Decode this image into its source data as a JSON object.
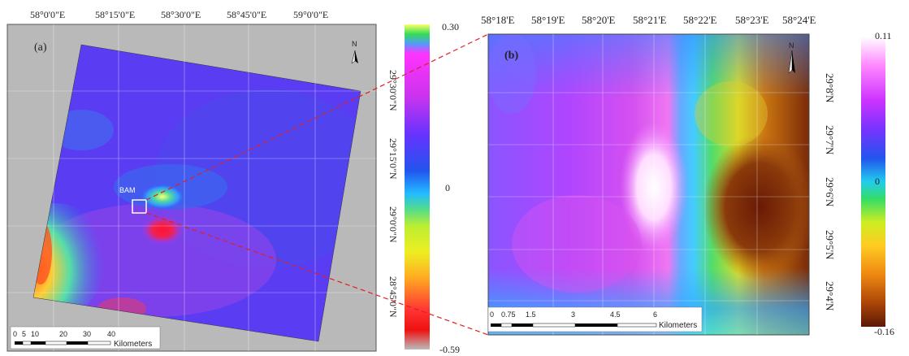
{
  "panel_a": {
    "letter": "(a)",
    "top_lon_labels": [
      "58°0'0\"E",
      "58°15'0\"E",
      "58°30'0\"E",
      "58°45'0\"E",
      "59°0'0\"E"
    ],
    "right_lat_labels": [
      "29°30'0\"N",
      "29°15'0\"N",
      "29°0'0\"N",
      "28°45'0\"N"
    ],
    "place_label": "BAM",
    "north_label": "N",
    "scale_ticks": [
      "0",
      "5",
      "10",
      "20",
      "30",
      "40"
    ],
    "scale_unit": "Kilometers",
    "colorbar_max": "0.30",
    "colorbar_mid": "0",
    "colorbar_min": "-0.59"
  },
  "panel_b": {
    "letter": "(b)",
    "top_lon_labels": [
      "58°18'E",
      "58°19'E",
      "58°20'E",
      "58°21'E",
      "58°22'E",
      "58°23'E",
      "58°24'E"
    ],
    "right_lat_labels": [
      "29°8'N",
      "29°7'N",
      "29°6'N",
      "29°5'N",
      "29°4'N"
    ],
    "north_label": "N",
    "scale_ticks": [
      "0",
      "0.75",
      "1.5",
      "3",
      "4.5",
      "6"
    ],
    "scale_unit": "Kilometers",
    "colorbar_max": "0.11",
    "colorbar_mid": "0",
    "colorbar_min": "-0.16"
  },
  "colors": {
    "map_frame_bg": "#b9b9b9",
    "interferogram_base": "#5a3cf2",
    "inset_line": "#e02020"
  }
}
